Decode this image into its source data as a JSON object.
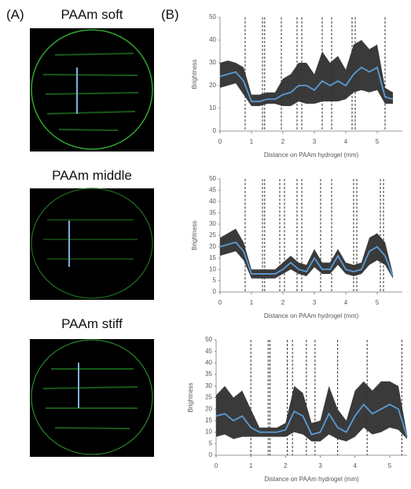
{
  "panel_a": {
    "label": "(A)",
    "images": [
      "PAAm soft",
      "PAAm middle",
      "PAAm stiff"
    ]
  },
  "panel_b": {
    "label": "(B)"
  },
  "chart_data": [
    {
      "type": "line",
      "x_label": "Distance on PAAm hydrogel (mm)",
      "y_label": "Brightness",
      "xlim": [
        0,
        5.8
      ],
      "xticks": [
        0,
        1,
        2,
        3,
        4,
        5
      ],
      "ylim": [
        0,
        50
      ],
      "yticks": [
        0,
        10,
        20,
        30,
        40,
        50
      ],
      "x": [
        0,
        0.25,
        0.5,
        0.75,
        1,
        1.25,
        1.5,
        1.75,
        2,
        2.25,
        2.5,
        2.75,
        3,
        3.25,
        3.5,
        3.75,
        4,
        4.25,
        4.5,
        4.75,
        5,
        5.25,
        5.5
      ],
      "series": [
        {
          "color": "#3a3a3a",
          "low": [
            19,
            20,
            21,
            16,
            11,
            11,
            12,
            12,
            11,
            11,
            13,
            12,
            12,
            13,
            13,
            13,
            14,
            17,
            18,
            17,
            18,
            12,
            12
          ],
          "high": [
            30,
            31,
            30,
            28,
            16,
            16,
            17,
            17,
            23,
            25,
            30,
            30,
            25,
            35,
            30,
            33,
            27,
            38,
            40,
            36,
            38,
            19,
            17
          ]
        },
        {
          "color": "#5b9bd5",
          "values": [
            24,
            25,
            26,
            22,
            13,
            13,
            14,
            14,
            16,
            17,
            20,
            20,
            18,
            22,
            20,
            22,
            20,
            25,
            28,
            26,
            28,
            15,
            14
          ]
        }
      ],
      "vlines": [
        0.8,
        1.35,
        1.42,
        1.95,
        2.45,
        2.6,
        3.25,
        3.55,
        4.2,
        4.3,
        5.25
      ]
    },
    {
      "type": "line",
      "x_label": "Distance on PAAm hydrogel (mm)",
      "y_label": "Brightness",
      "xlim": [
        0,
        5.8
      ],
      "xticks": [
        0,
        1,
        2,
        3,
        4,
        5
      ],
      "ylim": [
        0,
        50
      ],
      "yticks": [
        0,
        5,
        10,
        15,
        20,
        25,
        30,
        35,
        40,
        45,
        50
      ],
      "x": [
        0,
        0.25,
        0.5,
        0.75,
        1,
        1.25,
        1.5,
        1.75,
        2,
        2.25,
        2.5,
        2.75,
        3,
        3.25,
        3.5,
        3.75,
        4,
        4.25,
        4.5,
        4.75,
        5,
        5.25,
        5.5
      ],
      "series": [
        {
          "color": "#3a3a3a",
          "low": [
            16,
            17,
            18,
            14,
            6,
            6,
            6,
            6,
            8,
            10,
            8,
            7,
            11,
            8,
            8,
            12,
            8,
            7,
            8,
            12,
            14,
            12,
            6
          ],
          "high": [
            24,
            26,
            28,
            22,
            10,
            10,
            10,
            10,
            13,
            16,
            13,
            12,
            19,
            13,
            13,
            19,
            13,
            12,
            13,
            24,
            26,
            22,
            8
          ]
        },
        {
          "color": "#5b9bd5",
          "values": [
            20,
            21,
            22,
            18,
            8,
            8,
            8,
            8,
            10,
            13,
            10,
            9,
            15,
            10,
            10,
            16,
            10,
            9,
            10,
            18,
            20,
            16,
            7
          ]
        }
      ],
      "vlines": [
        0.8,
        1.35,
        1.42,
        1.9,
        2.05,
        2.45,
        2.6,
        3.2,
        3.55,
        4.25,
        4.35,
        5.1,
        5.2
      ]
    },
    {
      "type": "line",
      "x_label": "Distance on PAAm hydrogel (mm)",
      "y_label": "Brightness",
      "xlim": [
        0,
        5.5
      ],
      "xticks": [
        0,
        1,
        2,
        3,
        4,
        5
      ],
      "ylim": [
        0,
        50
      ],
      "yticks": [
        0,
        5,
        10,
        15,
        20,
        25,
        30,
        35,
        40,
        45,
        50
      ],
      "x": [
        0,
        0.25,
        0.5,
        0.75,
        1,
        1.25,
        1.5,
        1.75,
        2,
        2.25,
        2.5,
        2.75,
        3,
        3.25,
        3.5,
        3.75,
        4,
        4.25,
        4.5,
        4.75,
        5,
        5.25,
        5.5
      ],
      "series": [
        {
          "color": "#3a3a3a",
          "low": [
            8,
            9,
            7,
            8,
            8,
            8,
            8,
            8,
            8,
            10,
            9,
            6,
            6,
            9,
            7,
            6,
            8,
            12,
            9,
            10,
            12,
            11,
            7
          ],
          "high": [
            26,
            30,
            25,
            28,
            20,
            12,
            12,
            12,
            14,
            30,
            27,
            14,
            15,
            30,
            20,
            15,
            28,
            32,
            28,
            32,
            32,
            30,
            9
          ]
        },
        {
          "color": "#5b9bd5",
          "values": [
            17,
            18,
            15,
            17,
            12,
            10,
            10,
            10,
            11,
            19,
            17,
            9,
            10,
            18,
            12,
            10,
            17,
            22,
            18,
            20,
            22,
            20,
            8
          ]
        }
      ],
      "vlines": [
        1.0,
        1.5,
        1.55,
        2.05,
        2.2,
        2.6,
        2.85,
        3.5,
        4.35,
        5.35
      ]
    }
  ]
}
